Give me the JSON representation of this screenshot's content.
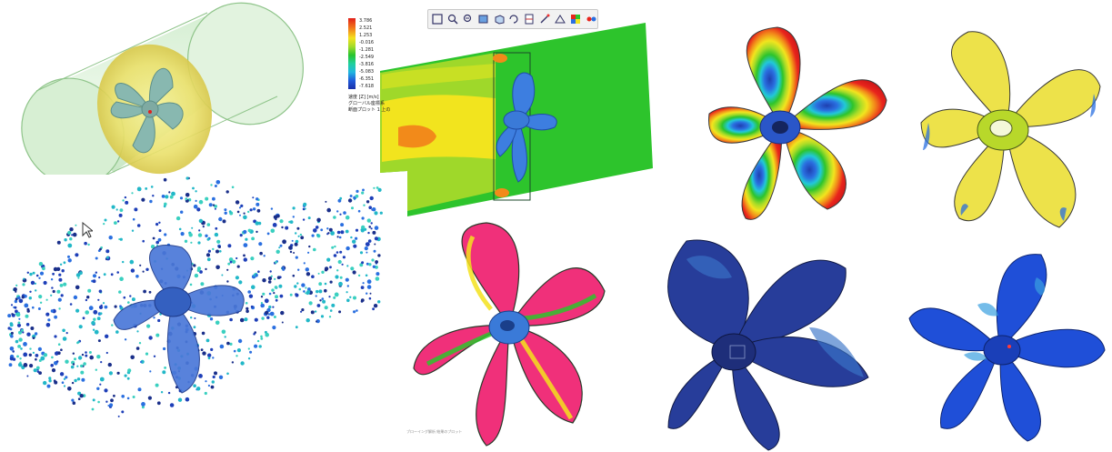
{
  "toolbar": {
    "buttons": [
      {
        "name": "zoom-fit-icon"
      },
      {
        "name": "zoom-in-icon"
      },
      {
        "name": "zoom-out-icon"
      },
      {
        "name": "view-front-icon"
      },
      {
        "name": "view-iso-icon"
      },
      {
        "name": "rotate-icon"
      },
      {
        "name": "section-icon"
      },
      {
        "name": "probe-icon"
      },
      {
        "name": "measure-icon"
      },
      {
        "name": "display-mode-icon"
      },
      {
        "name": "settings-icon"
      }
    ]
  },
  "legend": {
    "ticks": [
      "3.786",
      "2.521",
      "1.253",
      "-0.016",
      "-1.281",
      "-2.549",
      "-3.816",
      "-5.083",
      "-6.351",
      "-7.618"
    ],
    "note_line1": "速度 [Z] [m/s]",
    "note_line2": "グローバル座標系",
    "note_line3": "断面プロット 1 上の"
  },
  "caption": "ブローイング解析 結果のプロット",
  "colors": {
    "red": "#e8241c",
    "orange": "#f28a1a",
    "yellow": "#f2e41e",
    "green": "#2dc42c",
    "cyan": "#22c8d8",
    "blue": "#2a6fe0",
    "navy": "#20307a",
    "pink": "#f0307a"
  }
}
